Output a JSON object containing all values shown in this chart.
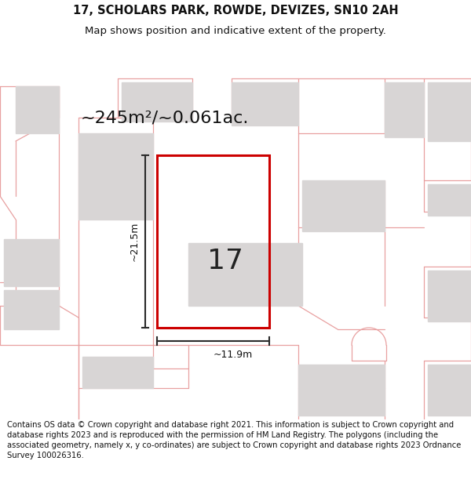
{
  "title": "17, SCHOLARS PARK, ROWDE, DEVIZES, SN10 2AH",
  "subtitle": "Map shows position and indicative extent of the property.",
  "area_text": "~245m²/~0.061ac.",
  "dim_vertical": "~21.5m",
  "dim_horizontal": "~11.9m",
  "property_number": "17",
  "copyright_text": "Contains OS data © Crown copyright and database right 2021. This information is subject to Crown copyright and database rights 2023 and is reproduced with the permission of HM Land Registry. The polygons (including the associated geometry, namely x, y co-ordinates) are subject to Crown copyright and database rights 2023 Ordnance Survey 100026316.",
  "map_bg": "#f2f0f0",
  "property_color": "#cc0000",
  "outline_color": "#e8a0a0",
  "building_color": "#d8d5d5",
  "dark_line": "#2a2a2a",
  "title_fontsize": 10.5,
  "subtitle_fontsize": 9.5,
  "area_fontsize": 16,
  "number_fontsize": 26,
  "dim_fontsize": 9,
  "copyright_fontsize": 7.2
}
